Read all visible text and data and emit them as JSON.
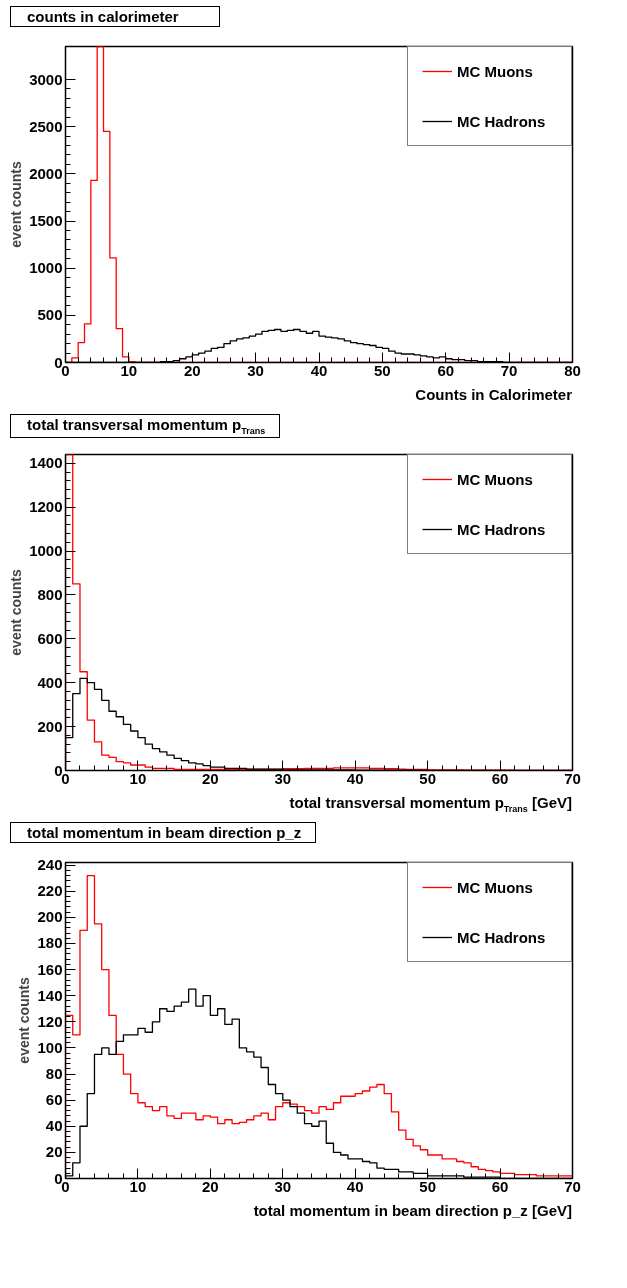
{
  "chart_data": [
    {
      "type": "histogram",
      "title": "counts in calorimeter",
      "xlabel": "Counts in Calorimeter",
      "ylabel": "event counts",
      "legend": "top right",
      "grid": false,
      "xlim": [
        0,
        80
      ],
      "xticks": [
        0,
        10,
        20,
        30,
        40,
        50,
        60,
        70,
        80
      ],
      "ylim": [
        0,
        3350
      ],
      "yticks": [
        0,
        500,
        1000,
        1500,
        2000,
        2500,
        3000
      ],
      "bins": [
        0,
        1,
        2,
        3,
        4,
        5,
        6,
        7,
        8,
        9,
        10,
        11,
        12,
        13,
        14,
        15,
        16,
        17,
        18,
        19,
        20,
        21,
        22,
        23,
        24,
        25,
        26,
        27,
        28,
        29,
        30,
        31,
        32,
        33,
        34,
        35,
        36,
        37,
        38,
        39,
        40,
        41,
        42,
        43,
        44,
        45,
        46,
        47,
        48,
        49,
        50,
        51,
        52,
        53,
        54,
        55,
        56,
        57,
        58,
        59,
        60,
        61,
        62,
        63,
        64,
        65,
        66,
        67,
        68,
        69,
        70,
        71,
        72,
        73,
        74,
        75,
        76,
        77,
        78,
        79,
        80
      ],
      "series": [
        {
          "name": "MC Muons",
          "color": "#ff0000",
          "values": [
            0,
            50,
            210,
            410,
            1930,
            3350,
            2450,
            1110,
            360,
            60,
            10,
            0,
            0,
            0,
            0,
            0,
            0,
            0,
            0,
            0,
            0,
            0,
            0,
            0,
            0,
            0,
            0,
            0,
            0,
            0,
            0,
            0,
            0,
            0,
            0,
            0,
            0,
            0,
            0,
            0,
            0,
            0,
            0,
            0,
            0,
            0,
            0,
            0,
            0,
            0,
            0,
            0,
            0,
            0,
            0,
            0,
            0,
            0,
            0,
            0,
            0,
            0,
            0,
            0,
            0,
            0,
            0,
            0,
            0,
            0,
            0,
            0,
            0,
            0,
            0,
            0,
            0,
            0,
            0,
            0
          ]
        },
        {
          "name": "MC Hadrons",
          "color": "#000000",
          "values": [
            0,
            0,
            0,
            0,
            0,
            0,
            0,
            0,
            0,
            0,
            0,
            0,
            0,
            0,
            0,
            10,
            10,
            20,
            40,
            60,
            80,
            100,
            120,
            150,
            160,
            200,
            230,
            250,
            260,
            280,
            300,
            330,
            340,
            350,
            330,
            340,
            350,
            330,
            310,
            330,
            280,
            270,
            260,
            250,
            230,
            210,
            200,
            190,
            180,
            160,
            150,
            120,
            100,
            90,
            90,
            80,
            70,
            60,
            50,
            60,
            40,
            30,
            30,
            20,
            20,
            10,
            10,
            10,
            10,
            0,
            0,
            0,
            0,
            0,
            0,
            0,
            0,
            0,
            0,
            0
          ]
        }
      ]
    },
    {
      "type": "histogram",
      "title": "total transversal momentum p$_{Trans}$",
      "xlabel": "total transversal momentum p$_{Trans}$ [GeV]",
      "ylabel": "event counts",
      "legend": "top right",
      "grid": false,
      "xlim": [
        0,
        70
      ],
      "xticks": [
        0,
        10,
        20,
        30,
        40,
        50,
        60,
        70
      ],
      "ylim": [
        0,
        1440
      ],
      "yticks": [
        0,
        200,
        400,
        600,
        800,
        1000,
        1200,
        1400
      ],
      "bins": [
        0,
        1,
        2,
        3,
        4,
        5,
        6,
        7,
        8,
        9,
        10,
        11,
        12,
        13,
        14,
        15,
        16,
        17,
        18,
        19,
        20,
        21,
        22,
        23,
        24,
        25,
        26,
        27,
        28,
        29,
        30,
        31,
        32,
        33,
        34,
        35,
        36,
        37,
        38,
        39,
        40,
        41,
        42,
        43,
        44,
        45,
        46,
        47,
        48,
        49,
        50,
        51,
        52,
        53,
        54,
        55,
        56,
        57,
        58,
        59,
        60,
        61,
        62,
        63,
        64,
        65,
        66,
        67,
        68,
        69,
        70
      ],
      "series": [
        {
          "name": "MC Muons",
          "color": "#ff0000",
          "values": [
            1440,
            850,
            450,
            230,
            130,
            70,
            60,
            40,
            35,
            25,
            25,
            15,
            10,
            10,
            10,
            5,
            5,
            5,
            5,
            5,
            5,
            5,
            5,
            5,
            5,
            5,
            5,
            5,
            5,
            5,
            8,
            8,
            8,
            10,
            10,
            10,
            10,
            12,
            12,
            12,
            12,
            12,
            10,
            10,
            8,
            8,
            6,
            5,
            5,
            5,
            3,
            3,
            3,
            3,
            3,
            2,
            2,
            2,
            2,
            2,
            2,
            2,
            1,
            1,
            1,
            1,
            1,
            1,
            1,
            1
          ]
        },
        {
          "name": "MC Hadrons",
          "color": "#000000",
          "values": [
            150,
            350,
            420,
            400,
            370,
            320,
            270,
            245,
            210,
            180,
            150,
            120,
            100,
            85,
            70,
            55,
            45,
            35,
            30,
            22,
            15,
            15,
            10,
            10,
            10,
            6,
            6,
            6,
            6,
            6,
            3,
            3,
            3,
            3,
            3,
            3,
            3,
            3,
            3,
            3,
            2,
            2,
            2,
            2,
            2,
            2,
            2,
            2,
            2,
            2,
            1,
            1,
            1,
            1,
            1,
            1,
            1,
            1,
            1,
            1,
            1,
            1,
            1,
            1,
            1,
            1,
            1,
            1,
            1,
            1
          ]
        }
      ]
    },
    {
      "type": "histogram",
      "title": "total momentum in beam direction p_z",
      "xlabel": "total momentum in beam direction p_z [GeV]",
      "ylabel": "event counts",
      "legend": "top right",
      "grid": false,
      "xlim": [
        0,
        70
      ],
      "xticks": [
        0,
        10,
        20,
        30,
        40,
        50,
        60,
        70
      ],
      "ylim": [
        0,
        242
      ],
      "yticks": [
        0,
        20,
        40,
        60,
        80,
        100,
        120,
        140,
        160,
        180,
        200,
        220,
        240
      ],
      "bins": [
        0,
        1,
        2,
        3,
        4,
        5,
        6,
        7,
        8,
        9,
        10,
        11,
        12,
        13,
        14,
        15,
        16,
        17,
        18,
        19,
        20,
        21,
        22,
        23,
        24,
        25,
        26,
        27,
        28,
        29,
        30,
        31,
        32,
        33,
        34,
        35,
        36,
        37,
        38,
        39,
        40,
        41,
        42,
        43,
        44,
        45,
        46,
        47,
        48,
        49,
        50,
        51,
        52,
        53,
        54,
        55,
        56,
        57,
        58,
        59,
        60,
        61,
        62,
        63,
        64,
        65,
        66,
        67,
        68,
        69,
        70
      ],
      "series": [
        {
          "name": "MC Muons",
          "color": "#ff0000",
          "values": [
            125,
            110,
            190,
            232,
            195,
            160,
            125,
            95,
            80,
            65,
            58,
            55,
            52,
            55,
            48,
            46,
            50,
            50,
            45,
            48,
            47,
            42,
            45,
            42,
            43,
            45,
            48,
            50,
            45,
            55,
            58,
            57,
            55,
            52,
            50,
            55,
            53,
            58,
            63,
            63,
            65,
            67,
            70,
            72,
            65,
            51,
            37,
            30,
            25,
            22,
            18,
            18,
            15,
            15,
            13,
            12,
            9,
            7,
            6,
            5,
            4,
            4,
            3,
            3,
            3,
            2,
            2,
            2,
            2,
            2
          ]
        },
        {
          "name": "MC Hadrons",
          "color": "#000000",
          "values": [
            2,
            12,
            40,
            65,
            95,
            100,
            95,
            105,
            110,
            110,
            115,
            112,
            120,
            130,
            128,
            132,
            135,
            145,
            132,
            140,
            125,
            130,
            118,
            122,
            100,
            97,
            93,
            85,
            72,
            65,
            60,
            55,
            50,
            42,
            40,
            44,
            27,
            20,
            18,
            15,
            15,
            13,
            12,
            8,
            7,
            7,
            5,
            5,
            4,
            4,
            2,
            2,
            2,
            2,
            2,
            1,
            1,
            1,
            1,
            1,
            0,
            0,
            0,
            0,
            0,
            0,
            0,
            0,
            0,
            0
          ]
        }
      ]
    }
  ]
}
